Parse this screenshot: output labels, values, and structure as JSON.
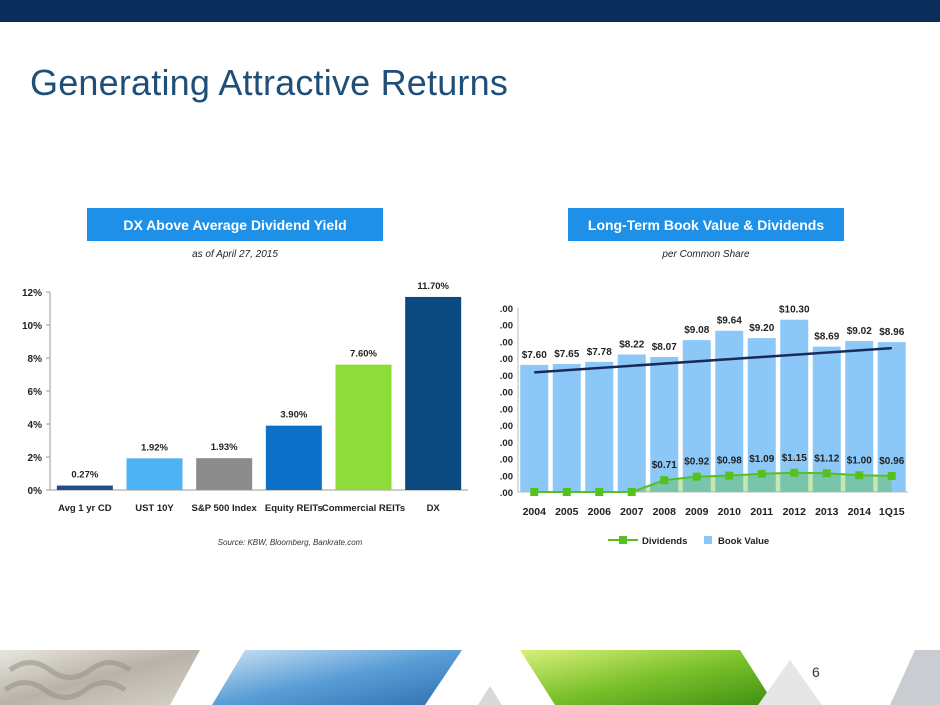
{
  "title": "Generating Attractive Returns",
  "page_number": "6",
  "left_panel": {
    "header": "DX Above Average Dividend Yield",
    "subtitle": "as of April 27, 2015",
    "source": "Source: KBW, Bloomberg, Bankrate.com"
  },
  "right_panel": {
    "header": "Long-Term Book Value & Dividends",
    "subtitle": "per Common Share"
  },
  "colors": {
    "top_bar": "#0b2d5b",
    "title": "#1f4e79",
    "header_bg": "#1e90e8",
    "book_value": "#8cc8f7",
    "dividends": "#55c11e",
    "trend": "#1b2a5c"
  },
  "chart_data": [
    {
      "type": "bar",
      "categories": [
        "Avg 1 yr CD",
        "UST 10Y",
        "S&P 500 Index",
        "Equity REITs",
        "Commercial REITs",
        "DX"
      ],
      "values": [
        0.27,
        1.92,
        1.93,
        3.9,
        7.6,
        11.7
      ],
      "data_labels": [
        "0.27%",
        "1.92%",
        "1.93%",
        "3.90%",
        "7.60%",
        "11.70%"
      ],
      "bar_colors": [
        "#1f4e8c",
        "#4db3f5",
        "#8c8c8c",
        "#0a70c8",
        "#8edc3a",
        "#0b4a80"
      ],
      "y_ticks": [
        "0%",
        "2%",
        "4%",
        "6%",
        "8%",
        "10%",
        "12%"
      ],
      "ylim": [
        0,
        12
      ],
      "grid": false
    },
    {
      "type": "bar",
      "categories": [
        "2004",
        "2005",
        "2006",
        "2007",
        "2008",
        "2009",
        "2010",
        "2011",
        "2012",
        "2013",
        "2014",
        "1Q15"
      ],
      "series": [
        {
          "name": "Book Value",
          "values": [
            7.6,
            7.65,
            7.78,
            8.22,
            8.07,
            9.08,
            9.64,
            9.2,
            10.3,
            8.69,
            9.02,
            8.96
          ],
          "labels": [
            "$7.60",
            "$7.65",
            "$7.78",
            "$8.22",
            "$8.07",
            "$9.08",
            "$9.64",
            "$9.20",
            "$10.30",
            "$8.69",
            "$9.02",
            "$8.96"
          ]
        },
        {
          "name": "Dividends",
          "values": [
            0,
            0,
            0,
            0,
            0.71,
            0.92,
            0.98,
            1.09,
            1.15,
            1.12,
            1.0,
            0.96
          ],
          "labels": [
            "",
            "",
            "",
            "",
            "$0.71",
            "$0.92",
            "$0.98",
            "$1.09",
            "$1.15",
            "$1.12",
            "$1.00",
            "$0.96"
          ]
        }
      ],
      "trend_line": {
        "start": 7.15,
        "end": 8.6
      },
      "y_ticks": [
        ".00",
        ".00",
        ".00",
        ".00",
        ".00",
        ".00",
        ".00",
        ".00",
        ".00",
        ".00",
        ".00",
        ".00"
      ],
      "ylim": [
        0,
        11
      ],
      "legend": [
        "Dividends",
        "Book Value"
      ],
      "legend_position": "bottom"
    }
  ]
}
